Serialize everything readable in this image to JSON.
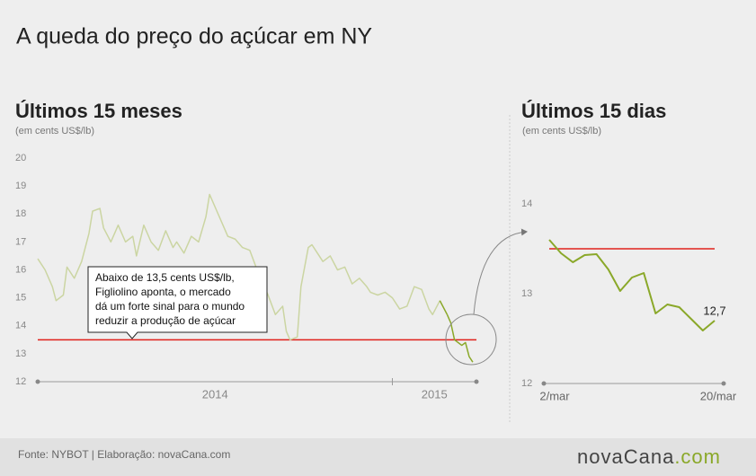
{
  "title": "A queda do preço do açúcar em NY",
  "footer": "Fonte: NYBOT | Elaboração: novaCana.com",
  "logo": {
    "name": "novaCana",
    "domain": ".com"
  },
  "chart_data": [
    {
      "type": "line",
      "title": "Últimos 15 meses",
      "subtitle": "(em cents US$/lb)",
      "x": [
        2014.03,
        2014.05,
        2014.07,
        2014.08,
        2014.1,
        2014.11,
        2014.13,
        2014.15,
        2014.17,
        2014.18,
        2014.2,
        2014.21,
        2014.23,
        2014.25,
        2014.27,
        2014.29,
        2014.3,
        2014.32,
        2014.34,
        2014.36,
        2014.38,
        2014.4,
        2014.41,
        2014.43,
        2014.45,
        2014.47,
        2014.49,
        2014.5,
        2014.52,
        2014.53,
        2014.55,
        2014.57,
        2014.59,
        2014.61,
        2014.63,
        2014.64,
        2014.66,
        2014.68,
        2014.7,
        2014.71,
        2014.72,
        2014.74,
        2014.75,
        2014.77,
        2014.78,
        2014.8,
        2014.81,
        2014.83,
        2014.85,
        2014.87,
        2014.89,
        2014.91,
        2014.93,
        2014.94,
        2014.96,
        2014.98,
        2015.0,
        2015.02,
        2015.04,
        2015.06,
        2015.08,
        2015.1,
        2015.11,
        2015.13,
        2015.15,
        2015.16,
        2015.17,
        2015.19,
        2015.2,
        2015.21,
        2015.22
      ],
      "series": [
        {
          "color": "#cbd5a2",
          "values": [
            16.4,
            16.0,
            15.4,
            14.9,
            15.1,
            16.1,
            15.7,
            16.3,
            17.3,
            18.1,
            18.2,
            17.5,
            17.0,
            17.6,
            17.0,
            17.2,
            16.5,
            17.6,
            17.0,
            16.7,
            17.4,
            16.8,
            17.0,
            16.6,
            17.2,
            17.0,
            17.9,
            18.7,
            18.1,
            17.8,
            17.2,
            17.1,
            16.8,
            16.7,
            16.0,
            15.7,
            15.1,
            14.4,
            14.7,
            13.8,
            13.5,
            13.6,
            15.4,
            16.8,
            16.9,
            16.5,
            16.3,
            16.5,
            16.0,
            16.1,
            15.5,
            15.7,
            15.4,
            15.2,
            15.1,
            15.2,
            15.0,
            14.6,
            14.7,
            15.4,
            15.3,
            14.6,
            14.4,
            14.9,
            14.4,
            14.1,
            13.5,
            13.3,
            13.4,
            12.9,
            12.7
          ]
        }
      ],
      "highlight": {
        "from": 2015.15,
        "color": "#8aa829"
      },
      "reference": {
        "value": 13.5,
        "color": "#e0201b"
      },
      "xlim": [
        2014.03,
        2015.23
      ],
      "xticks": [
        2015
      ],
      "xlabels": [
        2014,
        2015
      ],
      "ylim": [
        12,
        20
      ],
      "yticks": [
        12,
        13,
        14,
        15,
        16,
        17,
        18,
        19,
        20
      ],
      "annotation": {
        "lines": [
          "Abaixo de 13,5 cents US$/lb,",
          "Figliolino aponta, o mercado",
          "dá um forte sinal para o mundo",
          "reduzir a produção de açúcar"
        ]
      }
    },
    {
      "type": "line",
      "title": "Últimos 15 dias",
      "subtitle": "(em cents US$/lb)",
      "categories": [
        "2/mar",
        null,
        null,
        null,
        null,
        null,
        null,
        null,
        null,
        null,
        null,
        null,
        null,
        null,
        "20/mar"
      ],
      "series": [
        {
          "color": "#8aa829",
          "values": [
            13.6,
            13.45,
            13.35,
            13.43,
            13.44,
            13.27,
            13.03,
            13.18,
            13.23,
            12.78,
            12.88,
            12.85,
            12.72,
            12.59,
            12.7
          ],
          "value_labels": [
            null,
            null,
            null,
            null,
            null,
            null,
            null,
            null,
            null,
            null,
            null,
            null,
            null,
            null,
            "12,7"
          ]
        }
      ],
      "reference": {
        "value": 13.5,
        "color": "#e0201b"
      },
      "ylim": [
        12,
        14.5
      ],
      "yticks": [
        12,
        13,
        14
      ]
    }
  ]
}
